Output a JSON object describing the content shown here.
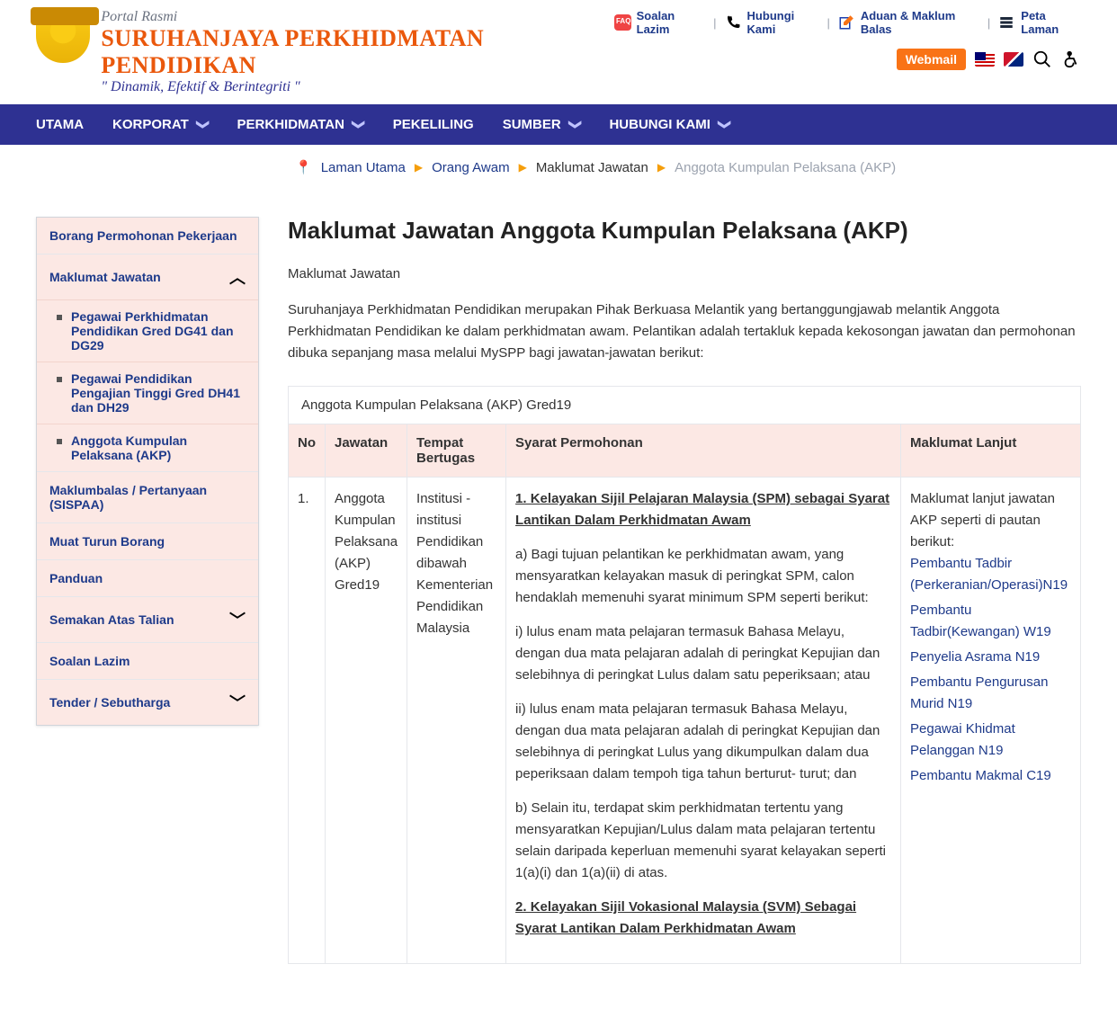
{
  "header": {
    "portal": "Portal Rasmi",
    "title": "SURUHANJAYA PERKHIDMATAN PENDIDIKAN",
    "motto": "\" Dinamik, Efektif & Berintegriti \"",
    "quicklinks": [
      "Soalan Lazim",
      "Hubungi Kami",
      "Aduan & Maklum Balas",
      "Peta Laman"
    ],
    "webmail": "Webmail"
  },
  "nav": [
    "UTAMA",
    "KORPORAT",
    "PERKHIDMATAN",
    "PEKELILING",
    "SUMBER",
    "HUBUNGI KAMI"
  ],
  "nav_has_sub": [
    false,
    true,
    true,
    false,
    true,
    true
  ],
  "breadcrumb": {
    "home": "Laman Utama",
    "l1": "Orang Awam",
    "l2": "Maklumat Jawatan",
    "current": "Anggota Kumpulan Pelaksana (AKP)"
  },
  "sidebar": {
    "items": [
      {
        "label": "Borang Permohonan Pekerjaan",
        "toggle": null,
        "subs": []
      },
      {
        "label": "Maklumat Jawatan",
        "toggle": "up",
        "subs": [
          "Pegawai Perkhidmatan Pendidikan Gred DG41 dan DG29",
          "Pegawai Pendidikan Pengajian Tinggi Gred DH41 dan DH29",
          "Anggota Kumpulan Pelaksana (AKP)"
        ]
      },
      {
        "label": "Maklumbalas / Pertanyaan (SISPAA)",
        "toggle": null,
        "subs": []
      },
      {
        "label": "Muat Turun Borang",
        "toggle": null,
        "subs": []
      },
      {
        "label": "Panduan",
        "toggle": null,
        "subs": []
      },
      {
        "label": "Semakan Atas Talian",
        "toggle": "down",
        "subs": []
      },
      {
        "label": "Soalan Lazim",
        "toggle": null,
        "subs": []
      },
      {
        "label": "Tender / Sebutharga",
        "toggle": "down",
        "subs": []
      }
    ]
  },
  "content": {
    "h1": "Maklumat Jawatan Anggota Kumpulan Pelaksana (AKP)",
    "sub": "Maklumat Jawatan",
    "intro": "Suruhanjaya Perkhidmatan Pendidikan merupakan Pihak Berkuasa Melantik yang bertanggungjawab melantik Anggota Perkhidmatan Pendidikan ke dalam perkhidmatan awam. Pelantikan adalah tertakluk kepada kekosongan jawatan dan permohonan dibuka sepanjang masa melalui MySPP bagi jawatan-jawatan berikut:",
    "table": {
      "caption": "Anggota Kumpulan Pelaksana (AKP) Gred19",
      "headers": [
        "No",
        "Jawatan",
        "Tempat Bertugas",
        "Syarat Permohonan",
        "Maklumat Lanjut"
      ],
      "row": {
        "no": "1.",
        "jawatan": "Anggota Kumpulan Pelaksana (AKP) Gred19",
        "tempat": "Institusi -institusi Pendidikan dibawah Kementerian Pendidikan Malaysia",
        "req": {
          "h1": "1. Kelayakan Sijil Pelajaran Malaysia (SPM) sebagai Syarat Lantikan Dalam Perkhidmatan Awam ",
          "a": "   a) Bagi tujuan pelantikan ke perkhidmatan awam, yang mensyaratkan kelayakan masuk di peringkat SPM, calon hendaklah memenuhi syarat minimum SPM seperti berikut:",
          "i1": "      i) lulus enam mata pelajaran termasuk Bahasa Melayu, dengan dua mata pelajaran adalah di peringkat Kepujian dan selebihnya di peringkat Lulus dalam satu peperiksaan; atau",
          "i2": "      ii) lulus enam mata pelajaran termasuk Bahasa Melayu, dengan dua mata pelajaran adalah di peringkat Kepujian dan selebihnya di peringkat Lulus yang dikumpulkan dalam dua peperiksaan dalam tempoh tiga tahun berturut- turut; dan",
          "b": "  b) Selain itu, terdapat skim perkhidmatan tertentu yang mensyaratkan Kepujian/Lulus dalam mata pelajaran tertentu selain daripada keperluan memenuhi syarat kelayakan seperti 1(a)(i) dan 1(a)(ii) di atas.",
          "h2": "2. Kelayakan Sijil Vokasional Malaysia (SVM) Sebagai Syarat Lantikan Dalam Perkhidmatan Awam"
        },
        "lanjut_intro": "Maklumat lanjut jawatan AKP seperti di pautan berikut:",
        "lanjut_links": [
          "Pembantu Tadbir (Perkeranian/Operasi)N19",
          "Pembantu Tadbir(Kewangan) W19",
          "Penyelia Asrama N19",
          "Pembantu Pengurusan Murid N19",
          "Pegawai Khidmat Pelanggan N19",
          "Pembantu Makmal C19"
        ]
      }
    }
  }
}
